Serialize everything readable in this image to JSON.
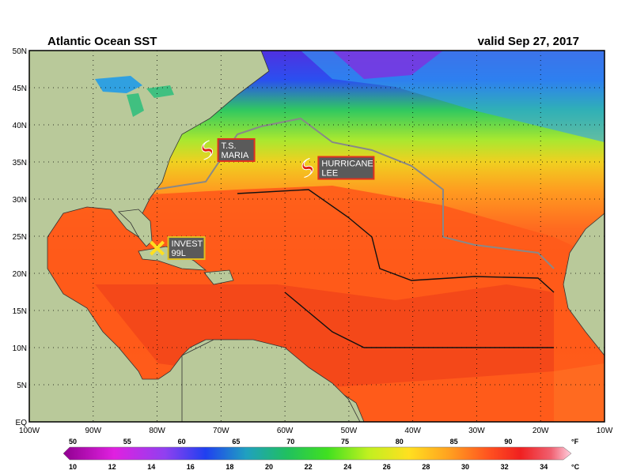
{
  "header": {
    "title": "Atlantic Ocean SST",
    "valid": "valid Sep 27, 2017"
  },
  "axes": {
    "lat_labels": [
      "50N",
      "45N",
      "40N",
      "35N",
      "30N",
      "25N",
      "20N",
      "15N",
      "10N",
      "5N",
      "EQ"
    ],
    "lon_labels": [
      "100W",
      "90W",
      "80W",
      "70W",
      "60W",
      "50W",
      "40W",
      "30W",
      "20W",
      "10W"
    ]
  },
  "storms": [
    {
      "name_line1": "T.S.",
      "name_line2": "MARIA",
      "kind": "tropical-storm",
      "lat": 36.6,
      "lon": -72.2
    },
    {
      "name_line1": "HURRICANE",
      "name_line2": "LEE",
      "kind": "hurricane",
      "lat": 34.2,
      "lon": -56.5
    },
    {
      "name_line1": "INVEST",
      "name_line2": "99L",
      "kind": "invest",
      "lat": 23.4,
      "lon": -80.0
    }
  ],
  "colorbar": {
    "f_unit": "°F",
    "c_unit": "°C",
    "f_labels": [
      "50",
      "55",
      "60",
      "65",
      "70",
      "75",
      "80",
      "85",
      "90"
    ],
    "c_labels": [
      "10",
      "12",
      "14",
      "16",
      "18",
      "20",
      "22",
      "24",
      "26",
      "28",
      "30",
      "32",
      "34"
    ]
  },
  "colors": {
    "land": "#b9c99a",
    "warm": "#ff5a1a",
    "hot": "#f0301a",
    "cool": "#30d060",
    "cold": "#3040e0",
    "storm_red": "#e02010",
    "invest_yellow": "#ffe020"
  }
}
